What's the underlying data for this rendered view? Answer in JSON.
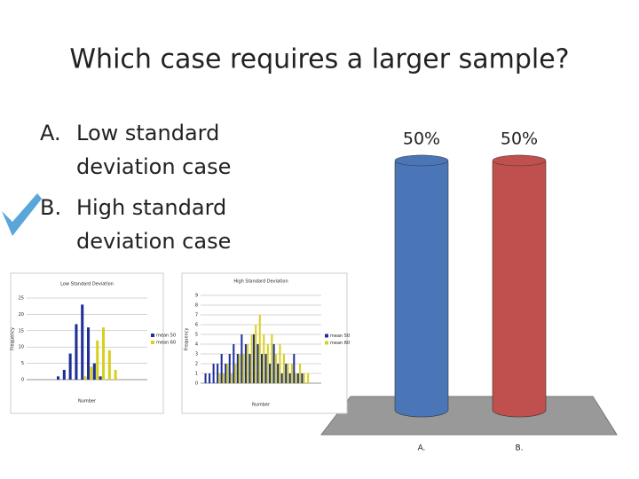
{
  "title": "Which case requires a larger sample?",
  "options": [
    {
      "letter": "A.",
      "lines": [
        "Low standard",
        "deviation case"
      ]
    },
    {
      "letter": "B.",
      "lines": [
        "High standard",
        "deviation case"
      ]
    }
  ],
  "chart_data": [
    {
      "type": "bar",
      "categories": [
        "A.",
        "B."
      ],
      "values": [
        50,
        50
      ],
      "value_labels": [
        "50%",
        "50%"
      ],
      "colors": [
        "#4a76b8",
        "#c0504d"
      ],
      "ylim": [
        0,
        50
      ]
    },
    {
      "type": "bar",
      "title": "Low Standard Deviation",
      "x_label": "Number",
      "y_label": "Frequency",
      "categories": [
        null,
        null,
        null,
        null,
        null,
        null,
        null,
        null,
        null,
        null,
        null,
        null,
        null,
        null,
        null,
        null,
        null,
        null,
        null,
        null
      ],
      "series": [
        {
          "name": "mean 50",
          "color": "#1f2f9a",
          "values": [
            0,
            0,
            0,
            0,
            0,
            1,
            3,
            8,
            17,
            23,
            16,
            5,
            1,
            0,
            0,
            0,
            0,
            0,
            0,
            0
          ]
        },
        {
          "name": "mean 60",
          "color": "#d8d020",
          "values": [
            0,
            0,
            0,
            0,
            0,
            0,
            0,
            0,
            0,
            1,
            4,
            12,
            16,
            9,
            3,
            0,
            0,
            0,
            0,
            0
          ]
        }
      ],
      "ylim": [
        0,
        25
      ],
      "yticks": [
        0,
        5,
        10,
        15,
        20,
        25
      ],
      "grid": true
    },
    {
      "type": "bar",
      "title": "High Standard Deviation",
      "x_label": "Number",
      "y_label": "Frequency",
      "categories": [
        null,
        null,
        null,
        null,
        null,
        null,
        null,
        null,
        null,
        null,
        null,
        null,
        null,
        null,
        null,
        null,
        null,
        null,
        null,
        null,
        null,
        null,
        null,
        null,
        null,
        null,
        null,
        null,
        null,
        null
      ],
      "series": [
        {
          "name": "mean 50",
          "color": "#1f2f9a",
          "values": [
            0,
            1,
            1,
            2,
            2,
            3,
            2,
            3,
            4,
            3,
            5,
            4,
            3,
            5,
            4,
            3,
            3,
            2,
            4,
            2,
            1,
            2,
            1,
            3,
            1,
            1,
            0,
            0,
            0,
            0
          ]
        },
        {
          "name": "mean 60",
          "color": "#d8d020",
          "values": [
            0,
            0,
            0,
            0,
            1,
            1,
            2,
            1,
            2,
            3,
            3,
            4,
            5,
            6,
            7,
            5,
            4,
            5,
            3,
            4,
            3,
            2,
            2,
            1,
            2,
            1,
            1,
            0,
            0,
            0
          ]
        }
      ],
      "ylim": [
        0,
        9
      ],
      "yticks": [
        0,
        1,
        2,
        3,
        4,
        5,
        6,
        7,
        8,
        9
      ],
      "grid": true
    }
  ]
}
